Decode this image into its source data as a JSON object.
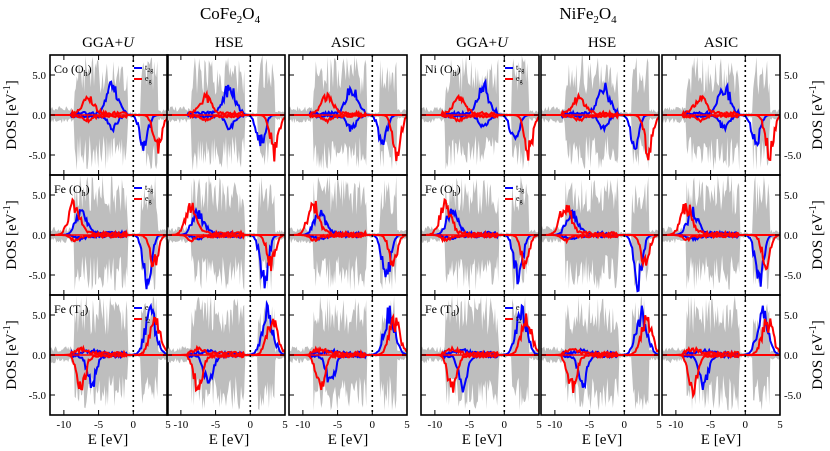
{
  "figure": {
    "left_title_base": "CoFe",
    "left_title_sub1": "2",
    "left_title_mid": "O",
    "left_title_sub2": "4",
    "right_title_base": "NiFe",
    "right_title_sub1": "2",
    "right_title_mid": "O",
    "right_title_sub2": "4",
    "method_labels": [
      "GGA+",
      "HSE",
      "ASIC"
    ],
    "method_label_u": "U",
    "ylabel_text": "DOS [eV",
    "ylabel_sup": "-1",
    "ylabel_close": "]",
    "xlabel": "E [eV]"
  },
  "colors": {
    "total": "#bebebe",
    "blue": "#0000ff",
    "red": "#ff0000",
    "axis": "#000000"
  },
  "chart_data": {
    "type": "line",
    "description": "Projected spin-polarized DOS, 2 compounds x 3 methods x 3 sites",
    "compounds": [
      "CoFe2O4",
      "NiFe2O4"
    ],
    "methods": [
      "GGA+U",
      "HSE",
      "ASIC"
    ],
    "x_ticks": [
      -10,
      -5,
      0,
      5
    ],
    "x_range_per_panel": [
      -12,
      5
    ],
    "y_ticks": [
      5.0,
      0.0,
      -5.0
    ],
    "y_tick_labels": [
      "5.0",
      "0.0",
      "-5.0"
    ],
    "ylim": [
      -7.5,
      7.5
    ],
    "fermi_level": 0,
    "rows": [
      {
        "site": [
          "Co (O",
          "h",
          ")"
        ],
        "site_nife": [
          "Ni (O",
          "h",
          ")"
        ],
        "legend": [
          [
            "t",
            "2g"
          ],
          [
            "e",
            "g"
          ]
        ],
        "blue_peaks": [
          {
            "x": -3,
            "up": 3.2,
            "down": -1.5
          },
          {
            "x": 1.5,
            "up": 0,
            "down": -3.5
          }
        ],
        "red_peaks": [
          {
            "x": -6.5,
            "up": 2.0,
            "down": -0.5
          },
          {
            "x": 3.5,
            "up": 0,
            "down": -4.5
          }
        ]
      },
      {
        "site": [
          "Fe (O",
          "h",
          ")"
        ],
        "site_nife": [
          "Fe (O",
          "h",
          ")"
        ],
        "legend": [
          [
            "t",
            "2g"
          ],
          [
            "e",
            "g"
          ]
        ],
        "blue_peaks": [
          {
            "x": -7.5,
            "up": 2.5,
            "down": -0.3
          },
          {
            "x": 2.0,
            "up": 0,
            "down": -5.5
          }
        ],
        "red_peaks": [
          {
            "x": -8.5,
            "up": 3.5,
            "down": -0.5
          },
          {
            "x": 3.0,
            "up": 0,
            "down": -3.5
          }
        ]
      },
      {
        "site": [
          "Fe (T",
          "d",
          ")"
        ],
        "site_nife": [
          "Fe (T",
          "d",
          ")"
        ],
        "legend": [
          [
            "e",
            ""
          ],
          [
            "t",
            "2"
          ]
        ],
        "blue_peaks": [
          {
            "x": -6.0,
            "up": 0.3,
            "down": -3.5
          },
          {
            "x": 2.5,
            "up": 5.0,
            "down": 0
          }
        ],
        "red_peaks": [
          {
            "x": -7.5,
            "up": 0.5,
            "down": -4.0
          },
          {
            "x": 3.2,
            "up": 4.0,
            "down": 0
          }
        ]
      }
    ]
  }
}
